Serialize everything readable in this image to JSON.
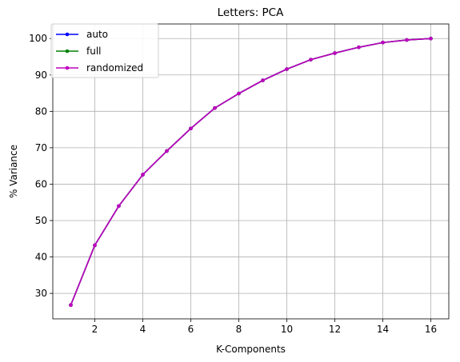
{
  "chart_data": {
    "type": "line",
    "title": "Letters: PCA",
    "xlabel": "K-Components",
    "ylabel": "% Variance",
    "xlim": [
      0.25,
      16.75
    ],
    "ylim": [
      23,
      104
    ],
    "xticks": [
      2,
      4,
      6,
      8,
      10,
      12,
      14,
      16
    ],
    "yticks": [
      30,
      40,
      50,
      60,
      70,
      80,
      90,
      100
    ],
    "grid": true,
    "legend_position": "top-left",
    "x": [
      1,
      2,
      3,
      4,
      5,
      6,
      7,
      8,
      9,
      10,
      11,
      12,
      13,
      14,
      15,
      16
    ],
    "series": [
      {
        "name": "auto",
        "color": "#0000ff",
        "marker": "point",
        "values": [
          26.8,
          43.2,
          54.0,
          62.6,
          69.1,
          75.3,
          80.9,
          84.9,
          88.5,
          91.6,
          94.2,
          96.0,
          97.6,
          98.9,
          99.6,
          100.0
        ]
      },
      {
        "name": "full",
        "color": "#008000",
        "marker": "point",
        "values": [
          26.8,
          43.2,
          54.0,
          62.6,
          69.1,
          75.3,
          80.9,
          84.9,
          88.5,
          91.6,
          94.2,
          96.0,
          97.6,
          98.9,
          99.6,
          100.0
        ]
      },
      {
        "name": "randomized",
        "color": "#bf00bf",
        "marker": "point",
        "values": [
          26.8,
          43.2,
          54.0,
          62.6,
          69.1,
          75.3,
          80.9,
          84.9,
          88.5,
          91.6,
          94.2,
          96.0,
          97.6,
          98.9,
          99.6,
          100.0
        ]
      }
    ]
  }
}
